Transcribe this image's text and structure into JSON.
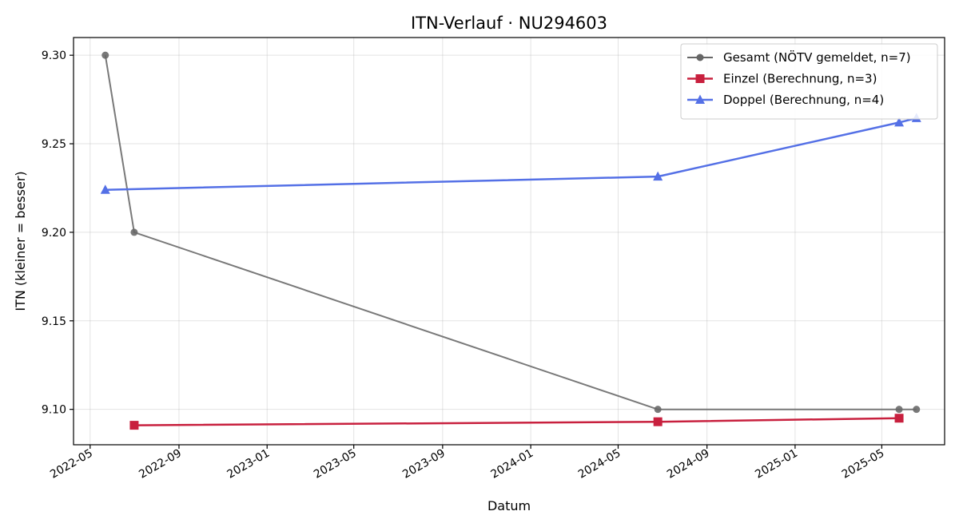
{
  "chart_data": {
    "type": "line",
    "title": "ITN-Verlauf · NU294603",
    "xlabel": "Datum",
    "ylabel": "ITN  (kleiner = besser)",
    "x_axis_type": "date",
    "xlim": [
      "2022-04-08",
      "2025-07-27"
    ],
    "ylim": [
      9.08,
      9.31
    ],
    "x_ticks": [
      "2022-05-01",
      "2022-09-01",
      "2023-01-01",
      "2023-05-01",
      "2023-09-01",
      "2024-01-01",
      "2024-05-01",
      "2024-09-01",
      "2025-01-01",
      "2025-05-01"
    ],
    "x_tick_labels": [
      "2022-05",
      "2022-09",
      "2023-01",
      "2023-05",
      "2023-09",
      "2024-01",
      "2024-05",
      "2024-09",
      "2025-01",
      "2025-05"
    ],
    "y_ticks": [
      9.1,
      9.15,
      9.2,
      9.25,
      9.3
    ],
    "y_tick_labels": [
      "9.10",
      "9.15",
      "9.20",
      "9.25",
      "9.30"
    ],
    "grid": true,
    "legend_position": "top-right",
    "series": [
      {
        "name": "Gesamt (NÖTV gemeldet, n=7)",
        "color": "#666666",
        "marker": "circle",
        "points": [
          {
            "x": "2022-05-22",
            "y": 9.3
          },
          {
            "x": "2022-07-01",
            "y": 9.2
          },
          {
            "x": "2024-06-25",
            "y": 9.1
          },
          {
            "x": "2025-05-25",
            "y": 9.1
          },
          {
            "x": "2025-06-18",
            "y": 9.1
          }
        ]
      },
      {
        "name": "Einzel (Berechnung, n=3)",
        "color": "#c8203e",
        "marker": "square",
        "points": [
          {
            "x": "2022-07-01",
            "y": 9.091
          },
          {
            "x": "2024-06-25",
            "y": 9.093
          },
          {
            "x": "2025-05-25",
            "y": 9.095
          }
        ]
      },
      {
        "name": "Doppel (Berechnung, n=4)",
        "color": "#5470e6",
        "marker": "triangle",
        "points": [
          {
            "x": "2022-05-22",
            "y": 9.224
          },
          {
            "x": "2024-06-25",
            "y": 9.2315
          },
          {
            "x": "2025-05-25",
            "y": 9.262
          },
          {
            "x": "2025-06-18",
            "y": 9.2645
          }
        ]
      }
    ]
  }
}
